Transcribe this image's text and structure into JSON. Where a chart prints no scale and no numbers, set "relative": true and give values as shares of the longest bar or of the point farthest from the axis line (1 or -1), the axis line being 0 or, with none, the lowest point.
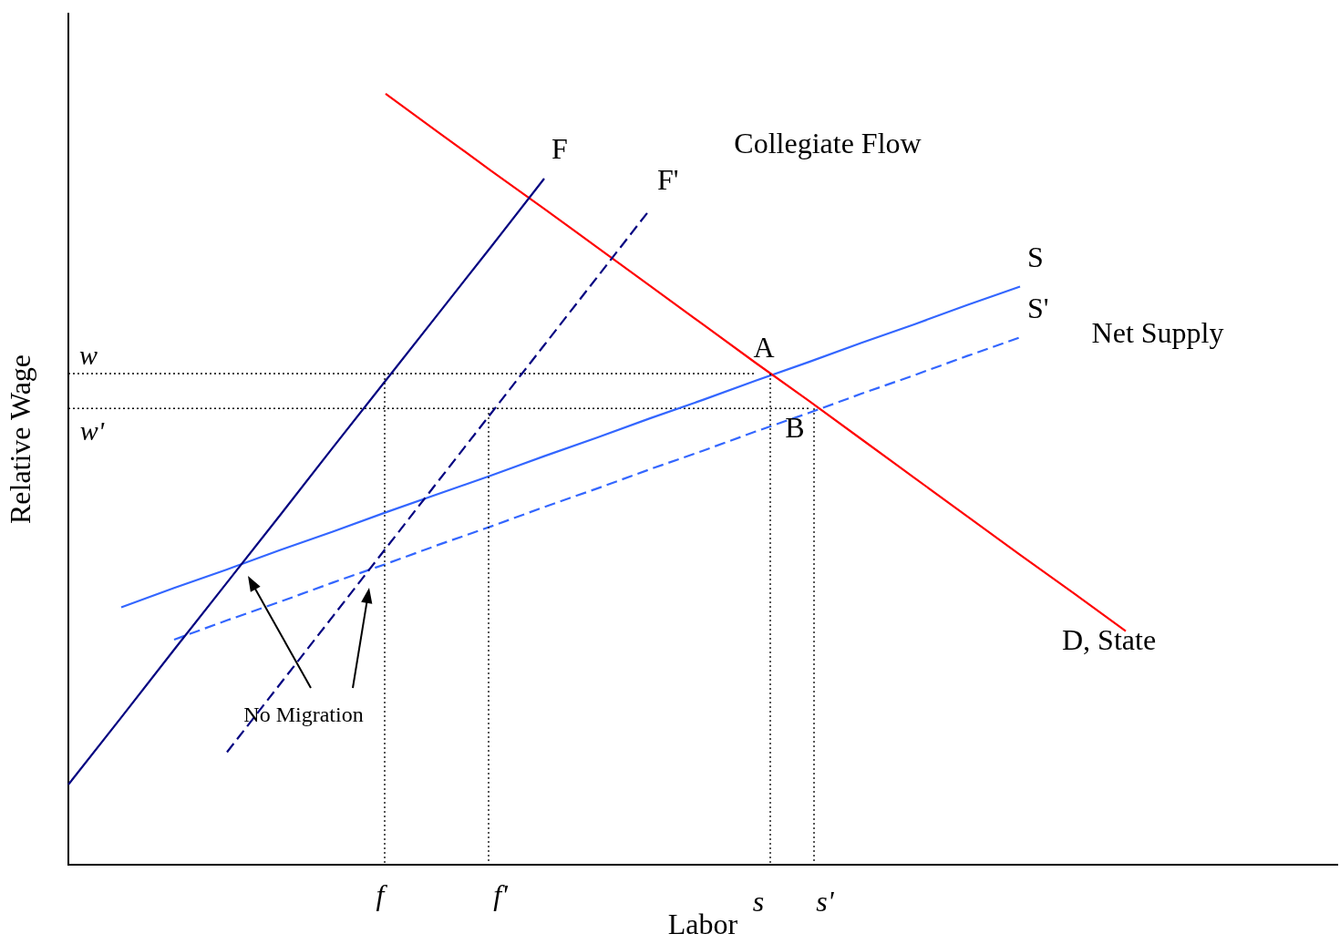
{
  "chart_data": {
    "type": "line",
    "relative": true,
    "xlabel": "Labor",
    "ylabel": "Relative Wage",
    "legend": false,
    "grid": false,
    "marker": "none",
    "categories": [
      null,
      null,
      null,
      null,
      null,
      null,
      null,
      null,
      null,
      null,
      null,
      null,
      null,
      null,
      null,
      null,
      null,
      null,
      null,
      null,
      null,
      null,
      null,
      null,
      null
    ],
    "series": [
      {
        "name": "F",
        "color": "#000080",
        "line_style": "solid",
        "values": [
          0.104,
          0.191,
          0.279,
          0.366,
          0.453,
          0.541,
          0.628,
          0.715,
          0.802,
          0.89,
          null,
          null,
          null,
          null,
          null,
          null,
          null,
          null,
          null,
          null,
          null,
          null,
          null,
          null,
          null
        ]
      },
      {
        "name": "F'",
        "color": "#000080",
        "line_style": "dashed",
        "values": [
          null,
          null,
          null,
          0.146,
          0.234,
          0.322,
          0.41,
          0.498,
          0.586,
          0.674,
          0.762,
          0.85,
          null,
          null,
          null,
          null,
          null,
          null,
          null,
          null,
          null,
          null,
          null,
          null,
          null
        ]
      },
      {
        "name": "D, State",
        "color": "#ff0000",
        "line_style": "solid",
        "values": [
          null,
          null,
          null,
          null,
          null,
          null,
          1.0,
          0.95,
          0.9,
          0.851,
          0.801,
          0.751,
          0.701,
          0.651,
          0.602,
          0.552,
          0.502,
          0.452,
          0.402,
          0.353,
          0.303,
          null,
          null,
          null,
          null
        ]
      },
      {
        "name": "S",
        "color": "#3366ff",
        "line_style": "solid",
        "values": [
          null,
          0.334,
          0.359,
          0.383,
          0.408,
          0.432,
          0.457,
          0.481,
          0.505,
          0.53,
          0.554,
          0.579,
          0.603,
          0.628,
          0.652,
          0.677,
          0.701,
          0.726,
          0.75,
          null,
          null,
          null,
          null,
          null,
          null
        ]
      },
      {
        "name": "S'",
        "color": "#3366ff",
        "line_style": "dashed",
        "values": [
          null,
          null,
          0.292,
          0.317,
          0.341,
          0.366,
          0.39,
          0.415,
          0.439,
          0.464,
          0.488,
          0.513,
          0.537,
          0.562,
          0.586,
          0.611,
          0.635,
          0.66,
          0.684,
          null,
          null,
          null,
          null,
          null,
          null
        ]
      },
      {
        "color": "#000000",
        "line_style": "dotted",
        "values": [
          0.637,
          0.637,
          0.637,
          0.637,
          0.637,
          0.637,
          0.637,
          0.637,
          0.637,
          0.637,
          0.637,
          0.637,
          0.637,
          0.637,
          null,
          null,
          null,
          null,
          null,
          null,
          null,
          null,
          null,
          null,
          null
        ]
      },
      {
        "color": "#000000",
        "line_style": "dotted",
        "values": [
          0.592,
          0.592,
          0.592,
          0.592,
          0.592,
          0.592,
          0.592,
          0.592,
          0.592,
          0.592,
          0.592,
          0.592,
          0.592,
          0.592,
          0.592,
          null,
          null,
          null,
          null,
          null,
          null,
          null,
          null,
          null,
          null
        ]
      }
    ],
    "annotations": [
      "Collegiate Flow",
      "Net Supply",
      "A",
      "B",
      "No Migration",
      "w",
      "w'",
      "f",
      "f'",
      "s",
      "s'"
    ]
  }
}
